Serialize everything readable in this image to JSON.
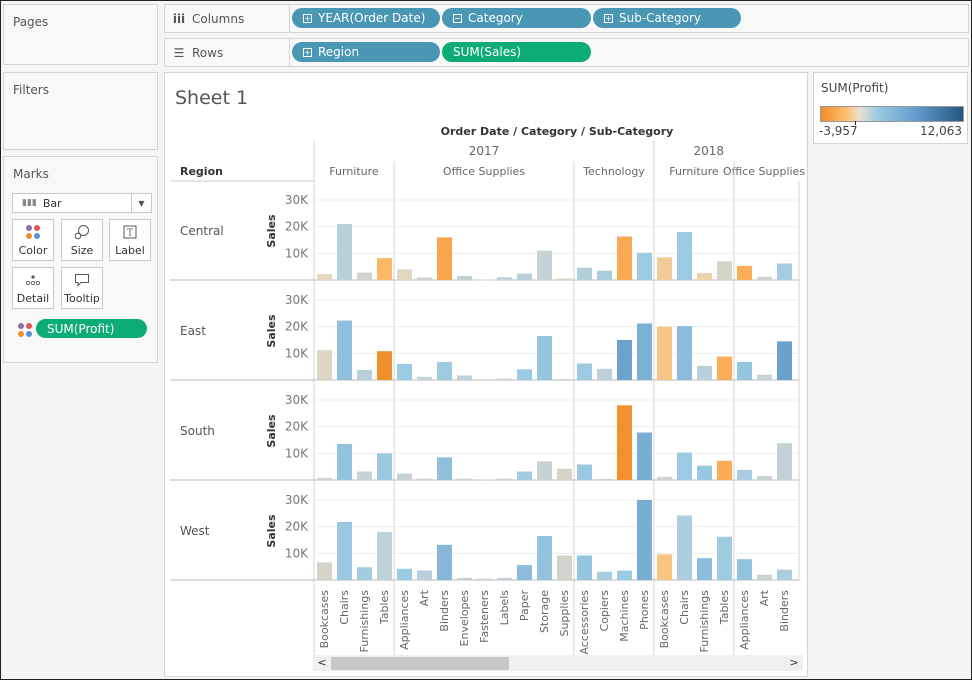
{
  "panels": {
    "pages": "Pages",
    "filters": "Filters",
    "marks": "Marks"
  },
  "shelves": {
    "columns": {
      "label": "Columns",
      "icon": "columns-icon",
      "pills": [
        {
          "label": "YEAR(Order Date)",
          "state": "expand"
        },
        {
          "label": "Category",
          "state": "collapse"
        },
        {
          "label": "Sub-Category",
          "state": "expand"
        }
      ]
    },
    "rows": {
      "label": "Rows",
      "icon": "rows-icon",
      "pills": [
        {
          "label": "Region",
          "state": "expand"
        },
        {
          "label": "SUM(Sales)",
          "state": "measure"
        }
      ]
    }
  },
  "marks": {
    "type": "Bar",
    "buttons": [
      "Color",
      "Size",
      "Label",
      "Detail",
      "Tooltip"
    ],
    "color_field": "SUM(Profit)"
  },
  "sheet_title": "Sheet 1",
  "legend": {
    "title": "SUM(Profit)",
    "min": "-3,957",
    "max": "12,063",
    "colors": [
      "#f28e2b",
      "#ffbe6f",
      "#e8e1d0",
      "#9ccae2",
      "#5a97c8",
      "#26557f"
    ]
  },
  "chart_data": {
    "type": "bar",
    "title": "Order Date / Category / Sub-Category",
    "row_header": "Region",
    "ylabel": "Sales",
    "ylim": [
      0,
      35000
    ],
    "yticks": [
      10000,
      20000,
      30000
    ],
    "ytick_labels": [
      "10K",
      "20K",
      "30K"
    ],
    "grid": true,
    "years": [
      {
        "label": "2017",
        "categories": [
          {
            "label": "Furniture",
            "subs": [
              "Bookcases",
              "Chairs",
              "Furnishings",
              "Tables"
            ]
          },
          {
            "label": "Office Supplies",
            "subs": [
              "Appliances",
              "Art",
              "Binders",
              "Envelopes",
              "Fasteners",
              "Labels",
              "Paper",
              "Storage",
              "Supplies"
            ]
          },
          {
            "label": "Technology",
            "subs": [
              "Accessories",
              "Copiers",
              "Machines",
              "Phones"
            ]
          }
        ]
      },
      {
        "label": "2018",
        "categories": [
          {
            "label": "Furniture",
            "subs": [
              "Bookcases",
              "Chairs",
              "Furnishings",
              "Tables"
            ]
          },
          {
            "label": "Office Supplies",
            "subs": [
              "Appliances",
              "Art",
              "Binders"
            ]
          }
        ]
      }
    ],
    "regions": [
      {
        "name": "Central",
        "sales": [
          2200,
          21000,
          2800,
          8200,
          4000,
          900,
          16000,
          1500,
          200,
          1100,
          2400,
          11000,
          600,
          4600,
          3500,
          16300,
          10200,
          8500,
          18000,
          2600,
          7000,
          5300,
          1200,
          6200
        ],
        "profit": [
          -200,
          600,
          50,
          -1800,
          -150,
          100,
          -2800,
          300,
          20,
          200,
          600,
          150,
          -40,
          800,
          1000,
          -2600,
          1500,
          -800,
          1500,
          -500,
          0,
          -2300,
          80,
          1200
        ]
      },
      {
        "name": "East",
        "sales": [
          11200,
          22300,
          3800,
          10800,
          6000,
          1200,
          6800,
          1700,
          100,
          500,
          4000,
          16500,
          400,
          6200,
          4200,
          15000,
          21200,
          20000,
          20200,
          5300,
          8800,
          6800,
          2000,
          14500
        ],
        "profit": [
          -100,
          2200,
          600,
          -3900,
          1500,
          200,
          1400,
          400,
          30,
          150,
          1500,
          1800,
          20,
          1500,
          500,
          4000,
          3100,
          -1100,
          2400,
          600,
          -2300,
          1900,
          200,
          4100
        ]
      },
      {
        "name": "South",
        "sales": [
          800,
          13500,
          3200,
          10000,
          2400,
          500,
          8500,
          500,
          100,
          500,
          3200,
          7000,
          4200,
          5800,
          400,
          28000,
          17800,
          1200,
          10300,
          5400,
          7200,
          3800,
          1500,
          13800
        ],
        "profit": [
          50,
          2000,
          200,
          1600,
          200,
          100,
          2200,
          100,
          20,
          100,
          1300,
          150,
          -10,
          1600,
          100,
          -3800,
          3300,
          40,
          1500,
          1700,
          -2400,
          1100,
          150,
          250
        ]
      },
      {
        "name": "West",
        "sales": [
          6600,
          21800,
          4800,
          18000,
          4200,
          3600,
          13200,
          800,
          500,
          800,
          5600,
          16500,
          9200,
          9200,
          3100,
          3500,
          30000,
          9600,
          24200,
          8200,
          16200,
          7800,
          2000,
          3900
        ],
        "profit": [
          -10,
          1600,
          1300,
          400,
          1500,
          700,
          2600,
          250,
          100,
          300,
          2400,
          2000,
          30,
          1900,
          1200,
          1500,
          3300,
          -1200,
          1000,
          2300,
          1400,
          2000,
          150,
          1000
        ]
      }
    ]
  },
  "scrollbar": {
    "left": "<",
    "right": ">"
  }
}
